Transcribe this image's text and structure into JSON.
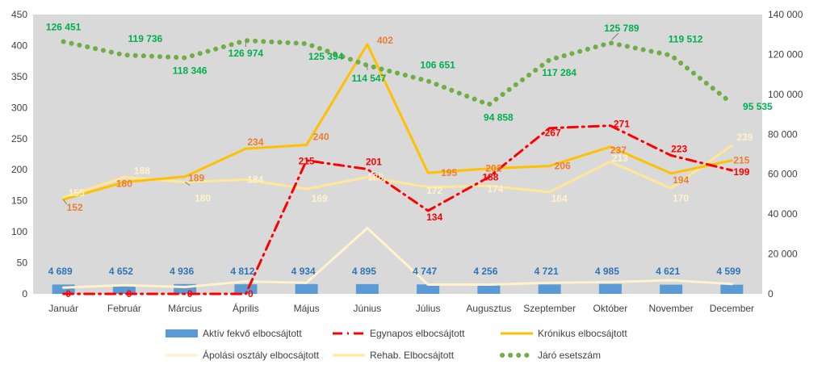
{
  "chart_data": {
    "type": "line",
    "title": "",
    "xlabel": "",
    "ylabel": "",
    "categories": [
      "Január",
      "Február",
      "Március",
      "Április",
      "Május",
      "Június",
      "Július",
      "Augusztus",
      "Szeptember",
      "Október",
      "November",
      "December"
    ],
    "ylim_left": [
      0,
      450
    ],
    "yticks_left": [
      0,
      50,
      100,
      150,
      200,
      250,
      300,
      350,
      400,
      450
    ],
    "ylim_right": [
      0,
      140000
    ],
    "yticks_right": [
      "0",
      "20 000",
      "40 000",
      "60 000",
      "80 000",
      "100 000",
      "120 000",
      "140 000"
    ],
    "yticks_right_values": [
      0,
      20000,
      40000,
      60000,
      80000,
      100000,
      120000,
      140000
    ],
    "grid": false,
    "legend_position": "bottom",
    "background": "#d9d9d9",
    "series": [
      {
        "name": "Aktív fekvő elbocsájtott",
        "type": "bar",
        "axis": "right",
        "color": "#5b9bd5",
        "label_color": "#2e75b6",
        "values": [
          4689,
          4652,
          4936,
          4812,
          4934,
          4895,
          4747,
          4256,
          4721,
          4985,
          4621,
          4599
        ],
        "labels": [
          "4 689",
          "4 652",
          "4 936",
          "4 812",
          "4 934",
          "4 895",
          "4 747",
          "4 256",
          "4 721",
          "4 985",
          "4 621",
          "4 599"
        ]
      },
      {
        "name": "Egynapos elbocsájtott",
        "type": "line",
        "axis": "left",
        "color": "#ff0000",
        "label_color": "#ff0000",
        "dash": "dash-dot",
        "values": [
          0,
          0,
          0,
          0,
          215,
          201,
          134,
          188,
          267,
          271,
          223,
          199
        ],
        "labels": [
          "0",
          "0",
          "0",
          "0",
          "215",
          "201",
          "134",
          "188",
          "267",
          "271",
          "223",
          "199"
        ]
      },
      {
        "name": "Krónikus elbocsájtott",
        "type": "line",
        "axis": "left",
        "color": "#ffc000",
        "label_color": "#ed7d31",
        "values": [
          152,
          180,
          189,
          234,
          240,
          402,
          195,
          202,
          206,
          237,
          194,
          215
        ],
        "labels": [
          "152",
          "180",
          "189",
          "234",
          "240",
          "402",
          "195",
          "202",
          "206",
          "237",
          "194",
          "215"
        ]
      },
      {
        "name": "Ápolási osztály elbocsájtott",
        "type": "line",
        "axis": "left",
        "color": "#fff2cc",
        "values": [
          10,
          14,
          11,
          20,
          18,
          106,
          15,
          15,
          18,
          19,
          22,
          16
        ]
      },
      {
        "name": "Rehab. Elbocsájtott",
        "type": "line",
        "axis": "left",
        "color": "#ffe699",
        "label_color": "#fff2cc",
        "values": [
          155,
          188,
          180,
          184,
          169,
          188,
          172,
          174,
          164,
          213,
          170,
          239
        ],
        "labels": [
          "155",
          "188",
          "180",
          "184",
          "169",
          "188",
          "172",
          "174",
          "164",
          "213",
          "170",
          "239"
        ]
      },
      {
        "name": "Járó esetszám",
        "type": "line",
        "axis": "right",
        "color": "#70ad47",
        "label_color": "#00b050",
        "dash": "dots",
        "values": [
          126451,
          119736,
          118346,
          126974,
          125394,
          114547,
          106651,
          94858,
          117284,
          125789,
          119512,
          95535
        ],
        "labels": [
          "126 451",
          "119 736",
          "118 346",
          "126 974",
          "125 394",
          "114 547",
          "106 651",
          "94 858",
          "117 284",
          "125 789",
          "119 512",
          "95 535"
        ]
      }
    ]
  }
}
